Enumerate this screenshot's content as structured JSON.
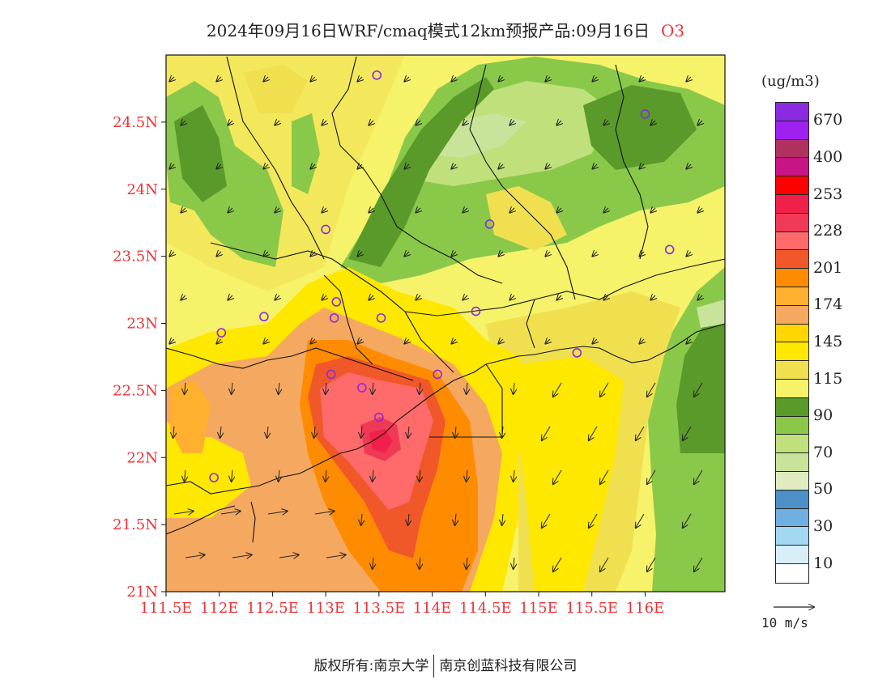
{
  "title": {
    "text": "2024年09月16日WRF/cmaq模式12km预报产品:09月16日",
    "species": "O3"
  },
  "lat_labels": [
    "24.5N",
    "24N",
    "23.5N",
    "23N",
    "22.5N",
    "22N",
    "21.5N",
    "21N"
  ],
  "lon_labels": [
    "111.5E",
    "112E",
    "112.5E",
    "113E",
    "113.5E",
    "114E",
    "114.5E",
    "115E",
    "115.5E",
    "116E"
  ],
  "map_extent": {
    "lon_min": 111.5,
    "lon_max": 116.75,
    "lat_min": 21.0,
    "lat_max": 25.0
  },
  "legend": {
    "unit": "(ug/m3)",
    "colors": [
      "#8a2be2",
      "#a020f0",
      "#b03060",
      "#c71585",
      "#ff0000",
      "#f0204a",
      "#f03a55",
      "#ff6a6a",
      "#f0582a",
      "#ff8c00",
      "#ffb02e",
      "#f4a860",
      "#ffd700",
      "#ffe800",
      "#f0e050",
      "#f6f26a",
      "#5a9a2a",
      "#8ac84a",
      "#bfe07a",
      "#c8e49a",
      "#e0ecc0",
      "#4d8fc6",
      "#6fb0e0",
      "#a3d8f3",
      "#d8eef8",
      "#ffffff"
    ],
    "labels": [
      "670",
      "400",
      "253",
      "228",
      "201",
      "174",
      "145",
      "115",
      "90",
      "70",
      "50",
      "30",
      "10"
    ]
  },
  "wind_reference": {
    "label": "10 m/s"
  },
  "stations": [
    {
      "lon": 113.48,
      "lat": 24.85
    },
    {
      "lon": 116.0,
      "lat": 24.56
    },
    {
      "lon": 113.0,
      "lat": 23.7
    },
    {
      "lon": 114.54,
      "lat": 23.74
    },
    {
      "lon": 116.23,
      "lat": 23.55
    },
    {
      "lon": 113.1,
      "lat": 23.16
    },
    {
      "lon": 112.42,
      "lat": 23.05
    },
    {
      "lon": 113.08,
      "lat": 23.04
    },
    {
      "lon": 113.52,
      "lat": 23.04
    },
    {
      "lon": 114.41,
      "lat": 23.09
    },
    {
      "lon": 112.02,
      "lat": 22.93
    },
    {
      "lon": 115.36,
      "lat": 22.78
    },
    {
      "lon": 113.05,
      "lat": 22.62
    },
    {
      "lon": 114.05,
      "lat": 22.62
    },
    {
      "lon": 113.34,
      "lat": 22.52
    },
    {
      "lon": 113.5,
      "lat": 22.3
    },
    {
      "lon": 111.95,
      "lat": 21.85
    }
  ],
  "footer": {
    "copyright": "版权所有:南京大学",
    "company": "南京创蓝科技有限公司"
  }
}
